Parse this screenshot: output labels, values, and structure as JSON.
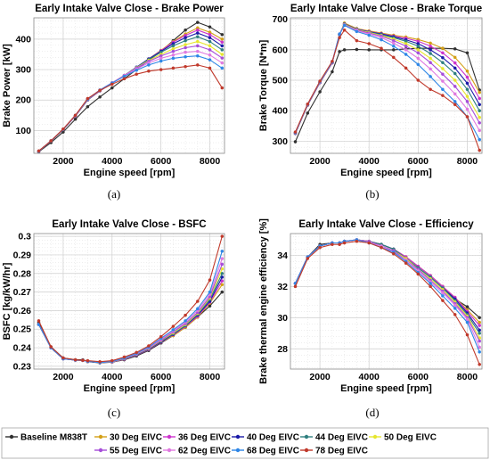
{
  "series_meta": [
    {
      "name": "Baseline M838T",
      "color": "#303030"
    },
    {
      "name": "30 Deg EIVC",
      "color": "#d4a017"
    },
    {
      "name": "36 Deg EIVC",
      "color": "#cc33cc"
    },
    {
      "name": "40 Deg EIVC",
      "color": "#1a1aa8"
    },
    {
      "name": "44 Deg EIVC",
      "color": "#2f7f7f"
    },
    {
      "name": "50 Deg EIVC",
      "color": "#e6e62e"
    },
    {
      "name": "55 Deg EIVC",
      "color": "#a64dd9"
    },
    {
      "name": "62 Deg EIVC",
      "color": "#e07ae0"
    },
    {
      "name": "68 Deg EIVC",
      "color": "#2e86e6"
    },
    {
      "name": "78 Deg EIVC",
      "color": "#c0392b"
    }
  ],
  "chart_data": [
    {
      "type": "line",
      "panel_label": "(a)",
      "title": "Early Intake Valve Close - Brake Power",
      "xlabel": "Engine speed [rpm]",
      "ylabel": "Brake Power [kW]",
      "xlim": [
        800,
        8600
      ],
      "ylim": [
        25,
        470
      ],
      "xticks": [
        2000,
        4000,
        6000,
        8000
      ],
      "yticks": [
        100,
        200,
        300,
        400
      ],
      "grid": true,
      "x": [
        1000,
        1500,
        2000,
        2500,
        3000,
        3500,
        4000,
        4500,
        5000,
        5500,
        6000,
        6500,
        7000,
        7500,
        8000,
        8500
      ],
      "series": [
        {
          "name": "Baseline M838T",
          "values": [
            30,
            60,
            95,
            137,
            178,
            210,
            240,
            270,
            300,
            330,
            360,
            395,
            430,
            455,
            440,
            415
          ]
        },
        {
          "name": "30 Deg EIVC",
          "values": [
            32,
            65,
            103,
            147,
            200,
            230,
            255,
            280,
            307,
            335,
            363,
            392,
            417,
            437,
            423,
            400
          ]
        },
        {
          "name": "36 Deg EIVC",
          "values": [
            32,
            65,
            103,
            147,
            200,
            230,
            255,
            280,
            307,
            335,
            362,
            390,
            412,
            430,
            415,
            390
          ]
        },
        {
          "name": "40 Deg EIVC",
          "values": [
            32,
            65,
            103,
            148,
            201,
            231,
            256,
            281,
            308,
            335,
            360,
            385,
            405,
            420,
            405,
            378
          ]
        },
        {
          "name": "44 Deg EIVC",
          "values": [
            32,
            65,
            103,
            148,
            201,
            231,
            256,
            281,
            307,
            333,
            357,
            378,
            395,
            408,
            392,
            365
          ]
        },
        {
          "name": "50 Deg EIVC",
          "values": [
            32,
            66,
            104,
            149,
            202,
            232,
            257,
            281,
            306,
            330,
            350,
            368,
            382,
            392,
            378,
            350
          ]
        },
        {
          "name": "55 Deg EIVC",
          "values": [
            32,
            66,
            104,
            149,
            202,
            232,
            257,
            281,
            305,
            327,
            345,
            360,
            372,
            378,
            365,
            338
          ]
        },
        {
          "name": "62 Deg EIVC",
          "values": [
            32,
            66,
            104,
            149,
            203,
            233,
            257,
            280,
            302,
            322,
            337,
            348,
            357,
            360,
            348,
            322
          ]
        },
        {
          "name": "68 Deg EIVC",
          "values": [
            32,
            66,
            104,
            150,
            203,
            233,
            256,
            278,
            298,
            315,
            328,
            337,
            342,
            345,
            332,
            305
          ]
        },
        {
          "name": "78 Deg EIVC",
          "values": [
            33,
            66,
            105,
            150,
            205,
            232,
            252,
            270,
            285,
            295,
            300,
            305,
            310,
            315,
            305,
            240
          ]
        }
      ]
    },
    {
      "type": "line",
      "panel_label": "(b)",
      "title": "Early Intake Valve Close - Brake Torque",
      "xlabel": "Engine speed [rpm]",
      "ylabel": "Brake Torque [N*m]",
      "xlim": [
        800,
        8600
      ],
      "ylim": [
        260,
        705
      ],
      "xticks": [
        2000,
        4000,
        6000,
        8000
      ],
      "yticks": [
        300,
        400,
        500,
        600,
        700
      ],
      "grid": true,
      "x": [
        1000,
        1500,
        2000,
        2500,
        2800,
        3000,
        3500,
        4000,
        4500,
        5000,
        5500,
        6000,
        6500,
        7000,
        7500,
        8000,
        8500
      ],
      "series": [
        {
          "name": "Baseline M838T",
          "values": [
            298,
            392,
            462,
            528,
            594,
            600,
            601,
            600,
            600,
            600,
            603,
            605,
            605,
            605,
            603,
            590,
            468
          ]
        },
        {
          "name": "30 Deg EIVC",
          "values": [
            325,
            418,
            492,
            557,
            650,
            688,
            670,
            662,
            655,
            648,
            642,
            634,
            622,
            605,
            575,
            530,
            460
          ]
        },
        {
          "name": "36 Deg EIVC",
          "values": [
            325,
            418,
            492,
            557,
            650,
            685,
            668,
            660,
            653,
            645,
            638,
            628,
            612,
            590,
            557,
            510,
            440
          ]
        },
        {
          "name": "40 Deg EIVC",
          "values": [
            326,
            419,
            493,
            558,
            650,
            685,
            668,
            659,
            652,
            643,
            633,
            620,
            600,
            574,
            540,
            490,
            420
          ]
        },
        {
          "name": "44 Deg EIVC",
          "values": [
            326,
            419,
            493,
            558,
            650,
            684,
            667,
            658,
            650,
            640,
            628,
            612,
            588,
            558,
            522,
            470,
            400
          ]
        },
        {
          "name": "50 Deg EIVC",
          "values": [
            327,
            420,
            494,
            559,
            651,
            683,
            666,
            657,
            647,
            635,
            620,
            600,
            572,
            538,
            500,
            447,
            378
          ]
        },
        {
          "name": "55 Deg EIVC",
          "values": [
            327,
            420,
            494,
            559,
            651,
            682,
            665,
            655,
            645,
            630,
            612,
            590,
            558,
            520,
            480,
            430,
            360
          ]
        },
        {
          "name": "62 Deg EIVC",
          "values": [
            328,
            421,
            495,
            560,
            652,
            681,
            663,
            652,
            640,
            622,
            600,
            572,
            537,
            497,
            455,
            405,
            335
          ]
        },
        {
          "name": "68 Deg EIVC",
          "values": [
            328,
            421,
            495,
            560,
            652,
            680,
            660,
            648,
            633,
            612,
            585,
            552,
            512,
            470,
            430,
            380,
            305
          ]
        },
        {
          "name": "78 Deg EIVC",
          "values": [
            330,
            422,
            497,
            562,
            640,
            665,
            630,
            620,
            605,
            575,
            540,
            500,
            470,
            450,
            420,
            380,
            270
          ]
        }
      ]
    },
    {
      "type": "line",
      "panel_label": "(c)",
      "title": "Early Intake Valve Close - BSFC",
      "xlabel": "Engine speed [rpm]",
      "ylabel": "BSFC [kg/kW/hr]",
      "xlim": [
        800,
        8600
      ],
      "ylim": [
        0.2285,
        0.3015
      ],
      "xticks": [
        2000,
        4000,
        6000,
        8000
      ],
      "yticks": [
        0.23,
        0.24,
        0.25,
        0.26,
        0.27,
        0.28,
        0.29,
        0.3
      ],
      "ytick_labels": [
        "0.23",
        "0.24",
        "0.25",
        "0.26",
        "0.27",
        "0.28",
        "0.29",
        "0.3"
      ],
      "grid": true,
      "x": [
        1000,
        1500,
        2000,
        2500,
        2800,
        3000,
        3500,
        4000,
        4500,
        5000,
        5500,
        6000,
        6500,
        7000,
        7500,
        8000,
        8500
      ],
      "series": [
        {
          "name": "Baseline M838T",
          "values": [
            0.2535,
            0.2405,
            0.2345,
            0.2335,
            0.2335,
            0.2325,
            0.2318,
            0.2322,
            0.2335,
            0.2355,
            0.2385,
            0.2425,
            0.2465,
            0.251,
            0.2565,
            0.2625,
            0.27
          ]
        },
        {
          "name": "30 Deg EIVC",
          "values": [
            0.2525,
            0.24,
            0.234,
            0.2333,
            0.2332,
            0.2327,
            0.232,
            0.2323,
            0.2338,
            0.236,
            0.239,
            0.243,
            0.2465,
            0.251,
            0.2565,
            0.264,
            0.274
          ]
        },
        {
          "name": "36 Deg EIVC",
          "values": [
            0.2525,
            0.24,
            0.234,
            0.2333,
            0.2332,
            0.2327,
            0.232,
            0.2323,
            0.2338,
            0.236,
            0.239,
            0.243,
            0.247,
            0.2515,
            0.257,
            0.2645,
            0.276
          ]
        },
        {
          "name": "40 Deg EIVC",
          "values": [
            0.2525,
            0.24,
            0.234,
            0.2333,
            0.2332,
            0.2327,
            0.232,
            0.2324,
            0.234,
            0.2362,
            0.2392,
            0.2432,
            0.2472,
            0.2518,
            0.2575,
            0.265,
            0.278
          ]
        },
        {
          "name": "44 Deg EIVC",
          "values": [
            0.2525,
            0.24,
            0.234,
            0.2333,
            0.2332,
            0.2327,
            0.232,
            0.2324,
            0.234,
            0.2363,
            0.2394,
            0.2435,
            0.2475,
            0.252,
            0.258,
            0.266,
            0.28
          ]
        },
        {
          "name": "50 Deg EIVC",
          "values": [
            0.2525,
            0.24,
            0.234,
            0.2333,
            0.2332,
            0.2327,
            0.232,
            0.2324,
            0.2341,
            0.2365,
            0.2396,
            0.2438,
            0.248,
            0.2525,
            0.2585,
            0.2668,
            0.2825
          ]
        },
        {
          "name": "55 Deg EIVC",
          "values": [
            0.2525,
            0.24,
            0.234,
            0.2333,
            0.2332,
            0.2327,
            0.232,
            0.2325,
            0.2342,
            0.2366,
            0.2398,
            0.244,
            0.2485,
            0.253,
            0.259,
            0.2675,
            0.285
          ]
        },
        {
          "name": "62 Deg EIVC",
          "values": [
            0.2525,
            0.24,
            0.234,
            0.2333,
            0.2332,
            0.2327,
            0.232,
            0.2325,
            0.2343,
            0.2368,
            0.24,
            0.2445,
            0.249,
            0.2538,
            0.26,
            0.2688,
            0.288
          ]
        },
        {
          "name": "68 Deg EIVC",
          "values": [
            0.2525,
            0.24,
            0.234,
            0.2333,
            0.2332,
            0.2327,
            0.232,
            0.2326,
            0.2344,
            0.237,
            0.2403,
            0.245,
            0.2497,
            0.2545,
            0.261,
            0.27,
            0.292
          ]
        },
        {
          "name": "78 Deg EIVC",
          "values": [
            0.2545,
            0.2405,
            0.2345,
            0.2335,
            0.2332,
            0.233,
            0.2325,
            0.233,
            0.235,
            0.2375,
            0.241,
            0.246,
            0.2515,
            0.2575,
            0.265,
            0.2765,
            0.3
          ]
        }
      ]
    },
    {
      "type": "line",
      "panel_label": "(d)",
      "title": "Early Intake Valve Close - Efficiency",
      "xlabel": "Engine speed [rpm]",
      "ylabel": "Brake thermal engine efficiency [%]",
      "xlim": [
        800,
        8600
      ],
      "ylim": [
        26.7,
        35.4
      ],
      "xticks": [
        2000,
        4000,
        6000,
        8000
      ],
      "yticks": [
        28,
        30,
        32,
        34
      ],
      "grid": true,
      "x": [
        1000,
        1500,
        2000,
        2500,
        2800,
        3000,
        3500,
        4000,
        4500,
        5000,
        5500,
        6000,
        6500,
        7000,
        7500,
        8000,
        8500
      ],
      "series": [
        {
          "name": "Baseline M838T",
          "values": [
            32.2,
            33.9,
            34.7,
            34.8,
            34.8,
            34.9,
            35.0,
            34.9,
            34.7,
            34.4,
            33.9,
            33.3,
            32.7,
            32.0,
            31.2,
            30.7,
            30.0
          ]
        },
        {
          "name": "30 Deg EIVC",
          "values": [
            32.2,
            33.9,
            34.6,
            34.8,
            34.8,
            34.9,
            35.0,
            34.9,
            34.7,
            34.4,
            33.9,
            33.3,
            32.7,
            32.0,
            31.3,
            30.5,
            29.7
          ]
        },
        {
          "name": "36 Deg EIVC",
          "values": [
            32.2,
            33.9,
            34.6,
            34.8,
            34.8,
            34.9,
            35.0,
            34.9,
            34.7,
            34.4,
            33.9,
            33.3,
            32.7,
            32.0,
            31.3,
            30.4,
            29.5
          ]
        },
        {
          "name": "40 Deg EIVC",
          "values": [
            32.2,
            33.9,
            34.6,
            34.8,
            34.8,
            34.9,
            35.0,
            34.9,
            34.7,
            34.4,
            33.8,
            33.2,
            32.6,
            31.9,
            31.2,
            30.3,
            29.2
          ]
        },
        {
          "name": "44 Deg EIVC",
          "values": [
            32.2,
            33.9,
            34.6,
            34.8,
            34.8,
            34.9,
            35.0,
            34.9,
            34.7,
            34.4,
            33.8,
            33.2,
            32.6,
            31.9,
            31.1,
            30.2,
            29.0
          ]
        },
        {
          "name": "50 Deg EIVC",
          "values": [
            32.2,
            33.9,
            34.6,
            34.8,
            34.8,
            34.9,
            35.0,
            34.9,
            34.6,
            34.3,
            33.8,
            33.1,
            32.5,
            31.8,
            31.0,
            30.1,
            28.7
          ]
        },
        {
          "name": "55 Deg EIVC",
          "values": [
            32.2,
            33.9,
            34.6,
            34.8,
            34.8,
            34.9,
            35.0,
            34.9,
            34.6,
            34.3,
            33.7,
            33.1,
            32.4,
            31.7,
            30.9,
            30.0,
            28.5
          ]
        },
        {
          "name": "62 Deg EIVC",
          "values": [
            32.2,
            33.9,
            34.6,
            34.8,
            34.8,
            34.9,
            35.0,
            34.8,
            34.6,
            34.2,
            33.7,
            33.0,
            32.3,
            31.6,
            30.8,
            29.9,
            28.1
          ]
        },
        {
          "name": "68 Deg EIVC",
          "values": [
            32.2,
            33.9,
            34.6,
            34.8,
            34.8,
            34.9,
            35.0,
            34.8,
            34.5,
            34.2,
            33.6,
            32.9,
            32.2,
            31.4,
            30.6,
            29.7,
            27.8
          ]
        },
        {
          "name": "78 Deg EIVC",
          "values": [
            32.0,
            33.8,
            34.5,
            34.7,
            34.7,
            34.8,
            34.9,
            34.8,
            34.5,
            34.1,
            33.5,
            32.8,
            32.0,
            31.1,
            30.2,
            28.9,
            27.0
          ]
        }
      ]
    }
  ]
}
